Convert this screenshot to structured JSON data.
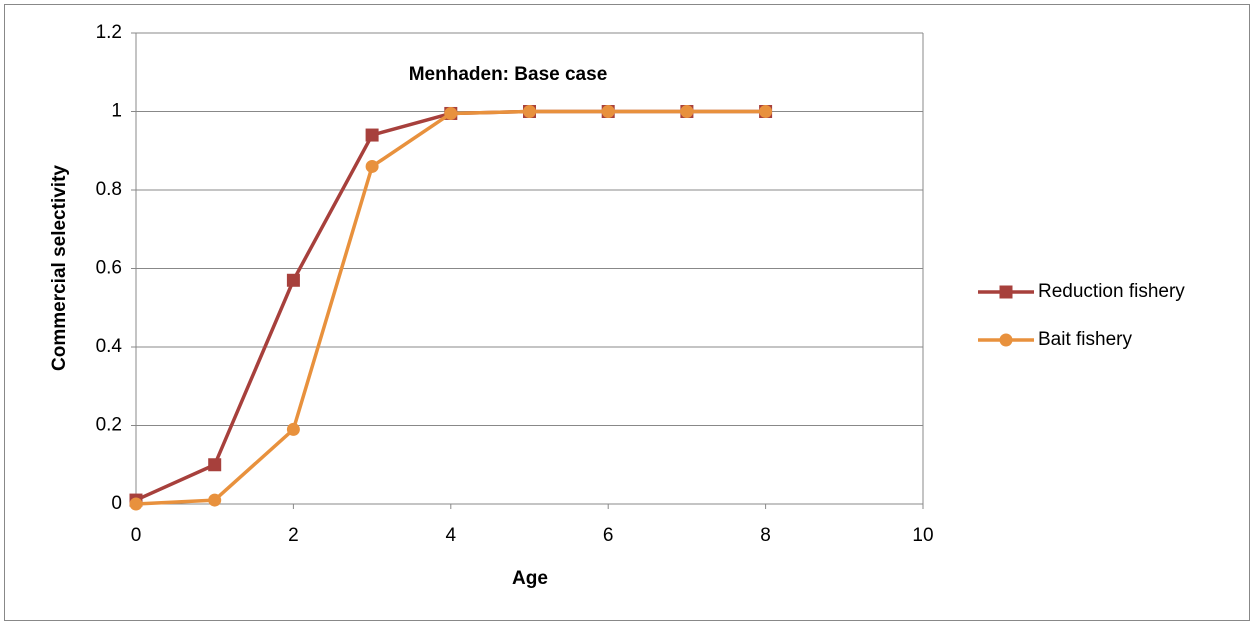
{
  "chart_data": {
    "type": "line",
    "title": "Menhaden: Base case",
    "xlabel": "Age",
    "ylabel": "Commercial selectivity",
    "x": [
      0,
      1,
      2,
      3,
      4,
      5,
      6,
      7,
      8
    ],
    "series": [
      {
        "name": "Reduction fishery",
        "color": "#a7403c",
        "marker": "square",
        "values": [
          0.01,
          0.1,
          0.57,
          0.94,
          0.995,
          1,
          1,
          1,
          1
        ]
      },
      {
        "name": "Bait fishery",
        "color": "#e8913d",
        "marker": "circle",
        "values": [
          0,
          0.01,
          0.19,
          0.86,
          0.995,
          1,
          1,
          1,
          1
        ]
      }
    ],
    "xlim": [
      0,
      10
    ],
    "xticks": [
      0,
      2,
      4,
      6,
      8,
      10
    ],
    "ylim": [
      0,
      1.2
    ],
    "yticks": [
      0,
      0.2,
      0.4,
      0.6,
      0.8,
      1,
      1.2
    ],
    "grid": true,
    "legend": "right"
  }
}
